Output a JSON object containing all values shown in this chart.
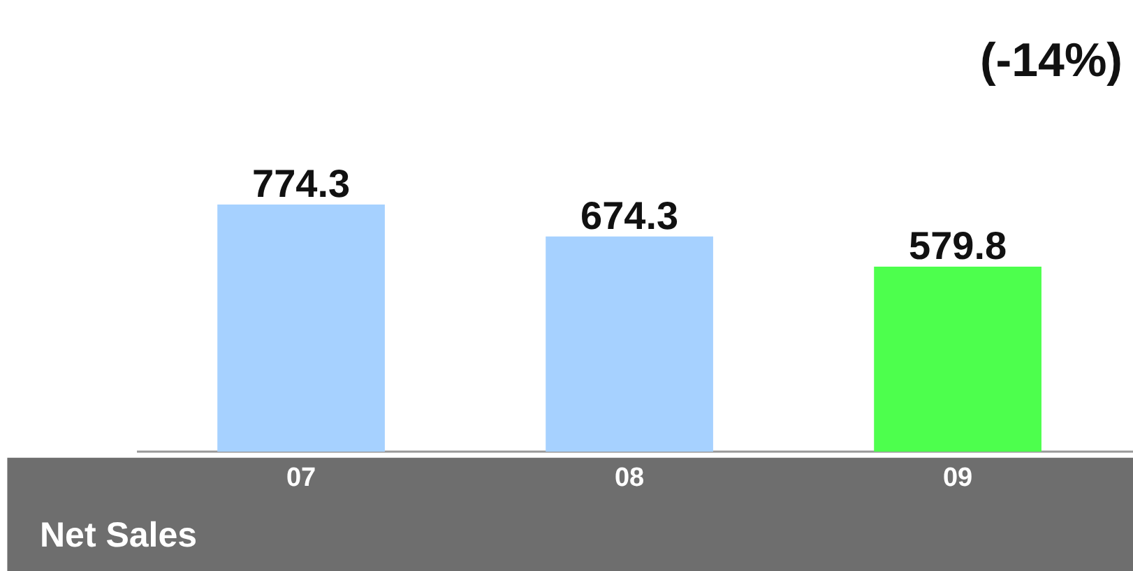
{
  "chart_data": {
    "type": "bar",
    "title": "Net Sales",
    "annotations": [
      "(-14%)"
    ],
    "categories": [
      "07",
      "08",
      "09"
    ],
    "values": [
      774.3,
      674.3,
      579.8
    ],
    "colors": [
      "#a6d1ff",
      "#a6d1ff",
      "#4dff4d"
    ],
    "data_labels": true
  }
}
